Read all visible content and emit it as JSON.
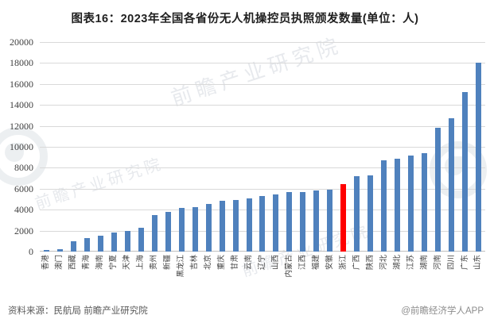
{
  "title": "图表16：2023年全国各省份无人机操控员执照颁发数量(单位：人)",
  "source_note": "资料来源：民航局 前瞻产业研究院",
  "credit": "@前瞻经济学人APP",
  "watermarks": {
    "text1": "前瞻产业研究院",
    "text2": "前瞻产业研究院",
    "text3": "前瞻产业研究院"
  },
  "chart_data": {
    "type": "bar",
    "title": "2023年全国各省份无人机操控员执照颁发数量(单位：人)",
    "xlabel": "",
    "ylabel": "",
    "ylim": [
      0,
      20000
    ],
    "yticks": [
      0,
      2000,
      4000,
      6000,
      8000,
      10000,
      12000,
      14000,
      16000,
      18000,
      20000
    ],
    "grid": true,
    "legend": "none",
    "bar_color": "#4f81bd",
    "highlight": {
      "category": "浙江",
      "color": "#ff0000"
    },
    "categories": [
      "香港",
      "澳门",
      "西藏",
      "青海",
      "海南",
      "宁夏",
      "天津",
      "上海",
      "贵州",
      "新疆",
      "黑龙江",
      "吉林",
      "北京",
      "重庆",
      "甘肃",
      "云南",
      "辽宁",
      "山西",
      "内蒙古",
      "江西",
      "福建",
      "安徽",
      "浙江",
      "广西",
      "陕西",
      "河北",
      "湖北",
      "江苏",
      "湖南",
      "河南",
      "四川",
      "广东",
      "山东"
    ],
    "values": [
      150,
      250,
      1000,
      1300,
      1550,
      1800,
      2000,
      2250,
      3500,
      3800,
      4150,
      4250,
      4550,
      4880,
      4950,
      5050,
      5300,
      5450,
      5650,
      5700,
      5850,
      5900,
      6450,
      7200,
      7300,
      8750,
      8900,
      9150,
      9400,
      11800,
      12700,
      15250,
      18050
    ]
  },
  "colors": {
    "gridline": "#d9d9d9",
    "axis_line": "#bfbfbf",
    "title_text": "#1f1f1f",
    "tick_text": "#404040",
    "source_text": "#595959",
    "credit_text": "#8c8c8c"
  }
}
